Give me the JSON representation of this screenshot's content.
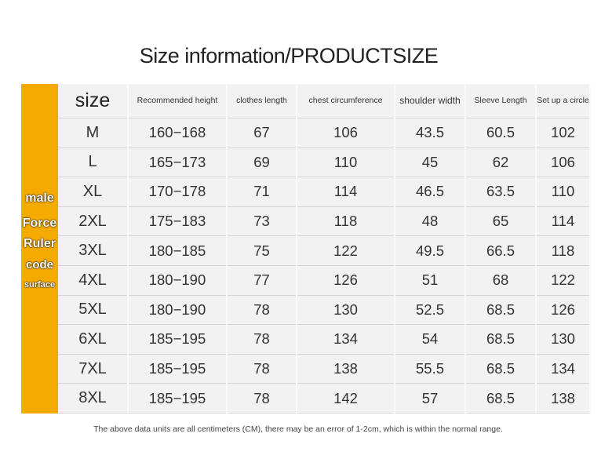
{
  "title": "Size information/PRODUCTSIZE",
  "sidebar": {
    "lines": [
      "male",
      "Force",
      "Ruler",
      "code",
      "surface"
    ]
  },
  "table": {
    "headers": [
      "size",
      "Recommended height",
      "clothes length",
      "chest circumference",
      "shoulder width",
      "Sleeve Length",
      "Set up a circle"
    ],
    "rows": [
      [
        "M",
        "160−168",
        "67",
        "106",
        "43.5",
        "60.5",
        "102"
      ],
      [
        "L",
        "165−173",
        "69",
        "110",
        "45",
        "62",
        "106"
      ],
      [
        "XL",
        "170−178",
        "71",
        "114",
        "46.5",
        "63.5",
        "110"
      ],
      [
        "2XL",
        "175−183",
        "73",
        "118",
        "48",
        "65",
        "114"
      ],
      [
        "3XL",
        "180−185",
        "75",
        "122",
        "49.5",
        "66.5",
        "118"
      ],
      [
        "4XL",
        "180−190",
        "77",
        "126",
        "51",
        "68",
        "122"
      ],
      [
        "5XL",
        "180−190",
        "78",
        "130",
        "52.5",
        "68.5",
        "126"
      ],
      [
        "6XL",
        "185−195",
        "78",
        "134",
        "54",
        "68.5",
        "130"
      ],
      [
        "7XL",
        "185−195",
        "78",
        "138",
        "55.5",
        "68.5",
        "134"
      ],
      [
        "8XL",
        "185−195",
        "78",
        "142",
        "57",
        "68.5",
        "138"
      ]
    ]
  },
  "footnote": "The above data units are all centimeters (CM), there may be an error of 1-2cm, which is within the normal range.",
  "colors": {
    "sidebar": "#f5aa00",
    "table_bg": "#f2f2f2"
  }
}
